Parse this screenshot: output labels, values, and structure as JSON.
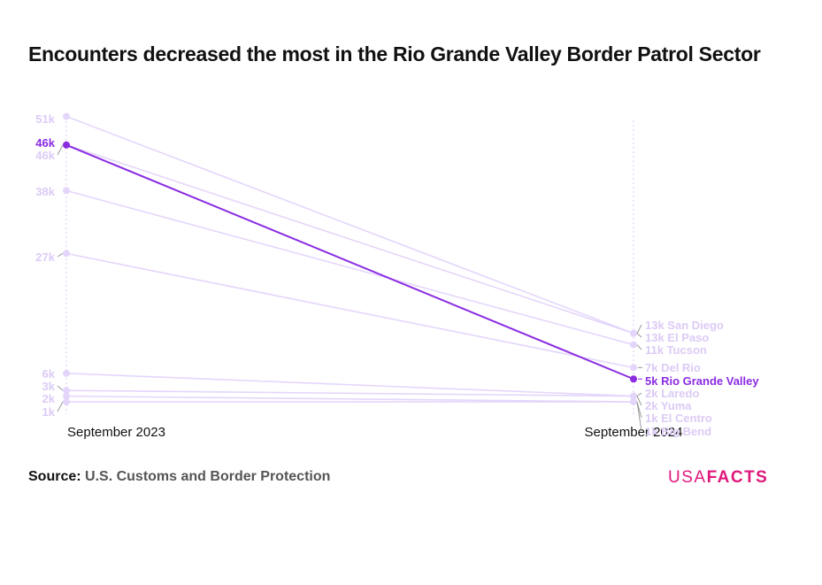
{
  "title": "Encounters decreased the most in the Rio Grande Valley Border Patrol Sector",
  "source": {
    "label": "Source:",
    "text": "U.S. Customs and Border Protection"
  },
  "logo": {
    "part1": "USA",
    "part2": "FACTS"
  },
  "colors": {
    "highlight": "#8a2be2",
    "muted": "#e4d6fb",
    "muted_label": "#dccbf6",
    "axis": "#e0d4f7",
    "text_dark": "#111111",
    "brand": "#e0177b"
  },
  "chart_data": {
    "type": "slope",
    "x": [
      "September 2023",
      "September 2024"
    ],
    "highlighted_series": "Rio Grande Valley",
    "series": [
      {
        "name": "San Diego",
        "values": [
          46000,
          13000
        ],
        "start_label": "46k",
        "end_label": "13k San Diego"
      },
      {
        "name": "El Paso",
        "values": [
          51000,
          13000
        ],
        "start_label": "51k",
        "end_label": "13k El Paso"
      },
      {
        "name": "Tucson",
        "values": [
          38000,
          11000
        ],
        "start_label": "38k",
        "end_label": "11k Tucson"
      },
      {
        "name": "Del Rio",
        "values": [
          27000,
          7000
        ],
        "start_label": "27k",
        "end_label": "7k Del Rio"
      },
      {
        "name": "Rio Grande Valley",
        "values": [
          46000,
          5000
        ],
        "start_label": "46k",
        "end_label": "5k Rio Grande Valley"
      },
      {
        "name": "Laredo",
        "values": [
          6000,
          2000
        ],
        "start_label": "6k",
        "end_label": "2k Laredo"
      },
      {
        "name": "Yuma",
        "values": [
          3000,
          2000
        ],
        "start_label": "3k",
        "end_label": "2k Yuma"
      },
      {
        "name": "El Centro",
        "values": [
          2000,
          1000
        ],
        "start_label": "2k",
        "end_label": "1k El Centro"
      },
      {
        "name": "Big Bend",
        "values": [
          1000,
          1000
        ],
        "start_label": "1k",
        "end_label": "1k Big Bend"
      }
    ]
  }
}
